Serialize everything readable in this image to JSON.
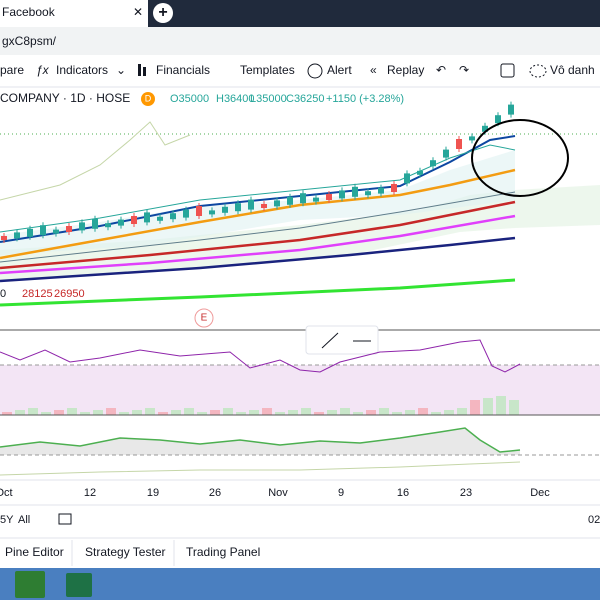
{
  "browser": {
    "tab": "Facebook",
    "url": "gxC8psm/"
  },
  "toolbar": {
    "compare": "pare",
    "indicators": "Indicators",
    "financials": "Financials",
    "templates": "Templates",
    "alert": "Alert",
    "replay": "Replay",
    "layout": "Vô danh"
  },
  "legend": {
    "symbol": "COMPANY · 1D · HOSE",
    "badge": "D",
    "open": "O35000",
    "high": "H36400",
    "low": "L35000",
    "close": "C36250",
    "change": "+1150 (+3.28%)"
  },
  "indicator_values": [
    "0",
    "28125",
    "26950"
  ],
  "marker": "E",
  "x_axis": [
    "Oct",
    "12",
    "19",
    "26",
    "Nov",
    "9",
    "16",
    "23",
    "Dec"
  ],
  "range": {
    "years": "5Y",
    "all": "All",
    "time": "02"
  },
  "panels": [
    "Pine Editor",
    "Strategy Tester",
    "Trading Panel"
  ]
}
